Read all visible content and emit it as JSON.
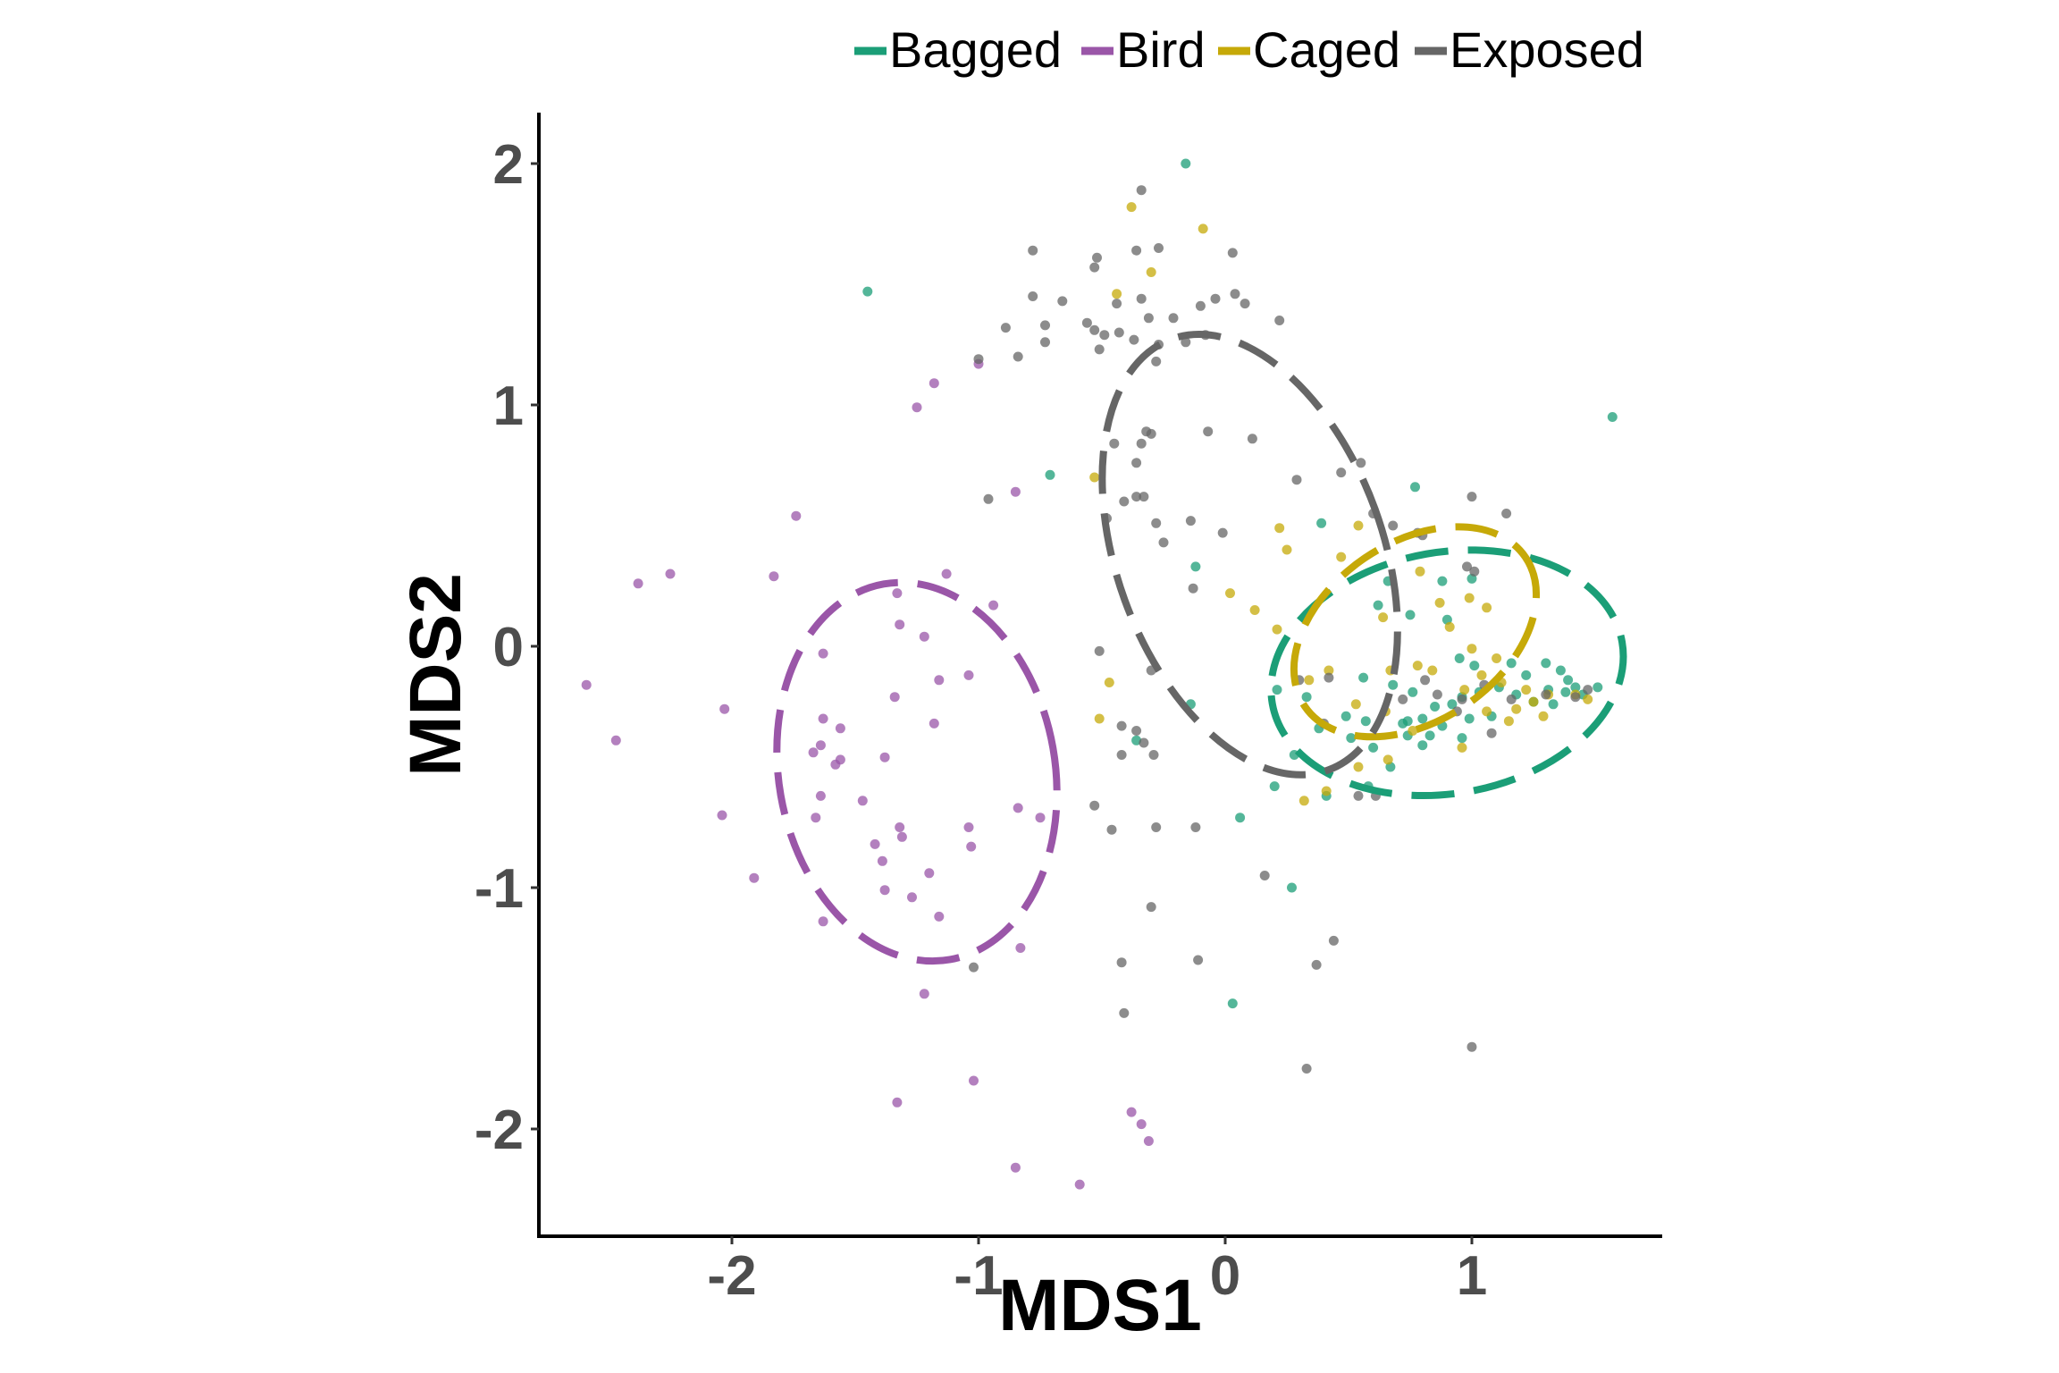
{
  "chart_data": {
    "type": "scatter",
    "title": "",
    "xlabel": "MDS1",
    "ylabel": "MDS2",
    "xlim": [
      -2.8,
      1.75
    ],
    "ylim": [
      -2.42,
      2.2
    ],
    "xticks": [
      -2,
      -1,
      0,
      1
    ],
    "yticks": [
      -2,
      -1,
      0,
      1,
      2
    ],
    "xtick_labels": [
      "-2",
      "-1",
      "0",
      "1"
    ],
    "ytick_labels": [
      "-2",
      "-1",
      "0",
      "1",
      "2"
    ],
    "grid": false,
    "legend_position": "top-right",
    "ellipse_style": "dashed",
    "series": [
      {
        "name": "Bagged",
        "color": "#1b9e77",
        "ellipse": {
          "cx": 0.9,
          "cy": -0.11,
          "rx": 0.72,
          "ry": 0.5,
          "angle": -10
        },
        "points": [
          [
            -1.45,
            1.47
          ],
          [
            -0.16,
            2.0
          ],
          [
            1.57,
            0.95
          ],
          [
            -0.71,
            0.71
          ],
          [
            0.77,
            0.66
          ],
          [
            0.39,
            0.51
          ],
          [
            -0.12,
            0.33
          ],
          [
            0.88,
            0.27
          ],
          [
            0.66,
            0.27
          ],
          [
            1.0,
            0.28
          ],
          [
            0.62,
            0.17
          ],
          [
            0.75,
            0.13
          ],
          [
            0.9,
            0.11
          ],
          [
            1.3,
            -0.07
          ],
          [
            1.36,
            -0.1
          ],
          [
            1.39,
            -0.14
          ],
          [
            1.51,
            -0.17
          ],
          [
            1.31,
            -0.18
          ],
          [
            1.38,
            -0.19
          ],
          [
            1.42,
            -0.17
          ],
          [
            1.18,
            -0.2
          ],
          [
            1.11,
            -0.17
          ],
          [
            1.03,
            -0.19
          ],
          [
            0.96,
            -0.21
          ],
          [
            0.92,
            -0.24
          ],
          [
            0.85,
            -0.25
          ],
          [
            0.8,
            -0.3
          ],
          [
            0.74,
            -0.31
          ],
          [
            1.08,
            -0.29
          ],
          [
            0.99,
            -0.3
          ],
          [
            0.88,
            -0.33
          ],
          [
            0.74,
            -0.37
          ],
          [
            0.8,
            -0.41
          ],
          [
            0.57,
            -0.31
          ],
          [
            0.49,
            -0.29
          ],
          [
            0.38,
            -0.34
          ],
          [
            0.33,
            -0.21
          ],
          [
            0.51,
            -0.38
          ],
          [
            0.6,
            -0.42
          ],
          [
            0.67,
            -0.5
          ],
          [
            0.58,
            -0.58
          ],
          [
            0.41,
            -0.62
          ],
          [
            0.2,
            -0.58
          ],
          [
            0.28,
            -0.45
          ],
          [
            -0.36,
            -0.39
          ],
          [
            -0.14,
            -0.24
          ],
          [
            0.06,
            -0.71
          ],
          [
            0.27,
            -1.0
          ],
          [
            0.03,
            -1.48
          ],
          [
            0.21,
            -0.18
          ],
          [
            1.16,
            -0.07
          ],
          [
            1.22,
            -0.12
          ],
          [
            1.45,
            -0.2
          ],
          [
            1.01,
            -0.08
          ],
          [
            0.96,
            -0.38
          ],
          [
            0.76,
            -0.19
          ],
          [
            1.25,
            -0.23
          ],
          [
            1.33,
            -0.24
          ],
          [
            0.72,
            -0.32
          ],
          [
            0.83,
            -0.37
          ],
          [
            0.68,
            -0.16
          ],
          [
            0.56,
            -0.13
          ],
          [
            0.95,
            -0.05
          ]
        ]
      },
      {
        "name": "Bird",
        "color": "#9a56a8",
        "ellipse": {
          "cx": -1.25,
          "cy": -0.52,
          "rx": 0.56,
          "ry": 0.79,
          "angle": -10
        },
        "points": [
          [
            -1.18,
            1.09
          ],
          [
            -1.25,
            0.99
          ],
          [
            -1.0,
            1.17
          ],
          [
            -0.85,
            0.64
          ],
          [
            -1.74,
            0.54
          ],
          [
            -1.33,
            0.22
          ],
          [
            -1.13,
            0.3
          ],
          [
            -1.83,
            0.29
          ],
          [
            -2.25,
            0.3
          ],
          [
            -2.38,
            0.26
          ],
          [
            -1.32,
            0.09
          ],
          [
            -1.22,
            0.04
          ],
          [
            -0.94,
            0.17
          ],
          [
            -1.63,
            -0.03
          ],
          [
            -1.16,
            -0.14
          ],
          [
            -1.34,
            -0.21
          ],
          [
            -2.59,
            -0.16
          ],
          [
            -2.47,
            -0.39
          ],
          [
            -2.03,
            -0.26
          ],
          [
            -1.63,
            -0.3
          ],
          [
            -1.56,
            -0.34
          ],
          [
            -1.67,
            -0.44
          ],
          [
            -1.64,
            -0.41
          ],
          [
            -1.56,
            -0.47
          ],
          [
            -1.58,
            -0.49
          ],
          [
            -1.38,
            -0.46
          ],
          [
            -1.18,
            -0.32
          ],
          [
            -1.64,
            -0.62
          ],
          [
            -1.47,
            -0.64
          ],
          [
            -1.66,
            -0.71
          ],
          [
            -2.04,
            -0.7
          ],
          [
            -0.84,
            -0.67
          ],
          [
            -0.75,
            -0.71
          ],
          [
            -1.32,
            -0.75
          ],
          [
            -1.31,
            -0.79
          ],
          [
            -1.42,
            -0.82
          ],
          [
            -1.04,
            -0.75
          ],
          [
            -1.03,
            -0.83
          ],
          [
            -1.39,
            -0.89
          ],
          [
            -1.2,
            -0.94
          ],
          [
            -1.38,
            -1.01
          ],
          [
            -1.27,
            -1.04
          ],
          [
            -1.91,
            -0.96
          ],
          [
            -1.63,
            -1.14
          ],
          [
            -1.16,
            -1.12
          ],
          [
            -0.83,
            -1.25
          ],
          [
            -1.22,
            -1.44
          ],
          [
            -1.02,
            -1.8
          ],
          [
            -1.33,
            -1.89
          ],
          [
            -0.38,
            -1.93
          ],
          [
            -0.34,
            -1.98
          ],
          [
            -0.31,
            -2.05
          ],
          [
            -0.85,
            -2.16
          ],
          [
            -0.59,
            -2.23
          ],
          [
            -1.04,
            -0.12
          ]
        ]
      },
      {
        "name": "Caged",
        "color": "#c6a908",
        "ellipse": {
          "cx": 0.77,
          "cy": 0.06,
          "rx": 0.54,
          "ry": 0.37,
          "angle": -34
        },
        "points": [
          [
            -0.38,
            1.82
          ],
          [
            -0.3,
            1.55
          ],
          [
            -0.44,
            1.46
          ],
          [
            -0.09,
            1.73
          ],
          [
            -0.53,
            0.7
          ],
          [
            0.22,
            0.49
          ],
          [
            0.25,
            0.4
          ],
          [
            0.47,
            0.37
          ],
          [
            0.79,
            0.31
          ],
          [
            0.99,
            0.2
          ],
          [
            1.06,
            0.16
          ],
          [
            0.02,
            0.22
          ],
          [
            0.21,
            0.07
          ],
          [
            0.64,
            0.12
          ],
          [
            0.91,
            0.08
          ],
          [
            1.0,
            -0.01
          ],
          [
            1.1,
            -0.05
          ],
          [
            1.04,
            -0.12
          ],
          [
            1.12,
            -0.15
          ],
          [
            1.22,
            -0.18
          ],
          [
            1.31,
            -0.2
          ],
          [
            1.42,
            -0.2
          ],
          [
            1.47,
            -0.22
          ],
          [
            0.97,
            -0.18
          ],
          [
            0.84,
            -0.1
          ],
          [
            0.67,
            -0.1
          ],
          [
            0.42,
            -0.1
          ],
          [
            0.34,
            -0.14
          ],
          [
            0.65,
            -0.27
          ],
          [
            0.76,
            -0.35
          ],
          [
            0.96,
            -0.42
          ],
          [
            1.06,
            -0.27
          ],
          [
            1.18,
            -0.26
          ],
          [
            1.29,
            -0.29
          ],
          [
            0.53,
            -0.24
          ],
          [
            0.54,
            -0.5
          ],
          [
            0.66,
            -0.47
          ],
          [
            0.41,
            -0.6
          ],
          [
            0.32,
            -0.64
          ],
          [
            -0.47,
            -0.15
          ],
          [
            -0.51,
            -0.3
          ],
          [
            0.12,
            0.15
          ],
          [
            0.54,
            0.5
          ],
          [
            0.87,
            0.18
          ],
          [
            1.25,
            -0.23
          ],
          [
            0.78,
            -0.08
          ],
          [
            1.15,
            -0.31
          ]
        ]
      },
      {
        "name": "Exposed",
        "color": "#666666",
        "ellipse": {
          "cx": 0.1,
          "cy": 0.38,
          "rx": 0.54,
          "ry": 0.95,
          "angle": -20
        },
        "points": [
          [
            -0.34,
            1.89
          ],
          [
            -0.36,
            1.64
          ],
          [
            -0.27,
            1.65
          ],
          [
            -0.52,
            1.61
          ],
          [
            -0.53,
            1.57
          ],
          [
            -0.44,
            1.42
          ],
          [
            -0.34,
            1.44
          ],
          [
            -0.21,
            1.36
          ],
          [
            -0.1,
            1.41
          ],
          [
            -0.04,
            1.44
          ],
          [
            0.04,
            1.46
          ],
          [
            0.03,
            1.63
          ],
          [
            0.08,
            1.42
          ],
          [
            0.22,
            1.35
          ],
          [
            -0.78,
            1.64
          ],
          [
            -0.78,
            1.45
          ],
          [
            -0.66,
            1.43
          ],
          [
            -0.89,
            1.32
          ],
          [
            -0.84,
            1.2
          ],
          [
            -0.73,
            1.26
          ],
          [
            -0.56,
            1.34
          ],
          [
            -0.53,
            1.31
          ],
          [
            -0.49,
            1.29
          ],
          [
            -0.37,
            1.27
          ],
          [
            -0.27,
            1.25
          ],
          [
            -0.28,
            1.18
          ],
          [
            -1.0,
            1.19
          ],
          [
            -0.73,
            1.33
          ],
          [
            -0.51,
            1.23
          ],
          [
            -0.43,
            1.3
          ],
          [
            -0.31,
            1.36
          ],
          [
            -0.16,
            1.26
          ],
          [
            -0.08,
            1.29
          ],
          [
            -0.34,
            0.84
          ],
          [
            -0.32,
            0.89
          ],
          [
            -0.3,
            0.88
          ],
          [
            -0.45,
            0.84
          ],
          [
            -0.36,
            0.76
          ],
          [
            0.11,
            0.86
          ],
          [
            -0.07,
            0.89
          ],
          [
            -0.36,
            0.62
          ],
          [
            -0.33,
            0.62
          ],
          [
            -0.41,
            0.6
          ],
          [
            -0.48,
            0.53
          ],
          [
            -0.28,
            0.51
          ],
          [
            -0.14,
            0.52
          ],
          [
            -0.01,
            0.47
          ],
          [
            -0.25,
            0.43
          ],
          [
            0.29,
            0.69
          ],
          [
            0.47,
            0.72
          ],
          [
            0.55,
            0.76
          ],
          [
            0.6,
            0.55
          ],
          [
            0.68,
            0.5
          ],
          [
            0.8,
            0.46
          ],
          [
            0.78,
            0.47
          ],
          [
            0.98,
            0.33
          ],
          [
            1.01,
            0.31
          ],
          [
            1.14,
            0.55
          ],
          [
            1.0,
            0.62
          ],
          [
            -0.96,
            0.61
          ],
          [
            -0.13,
            0.24
          ],
          [
            -0.51,
            -0.02
          ],
          [
            -0.3,
            -0.1
          ],
          [
            -0.42,
            -0.33
          ],
          [
            -0.36,
            -0.35
          ],
          [
            -0.42,
            -0.45
          ],
          [
            -0.33,
            -0.4
          ],
          [
            -0.29,
            -0.45
          ],
          [
            -0.53,
            -0.66
          ],
          [
            -0.46,
            -0.76
          ],
          [
            -0.28,
            -0.75
          ],
          [
            -0.12,
            -0.75
          ],
          [
            0.16,
            -0.95
          ],
          [
            -0.3,
            -1.08
          ],
          [
            -0.11,
            -1.3
          ],
          [
            -0.42,
            -1.31
          ],
          [
            -1.02,
            -1.33
          ],
          [
            -0.41,
            -1.52
          ],
          [
            0.33,
            -1.75
          ],
          [
            0.37,
            -1.32
          ],
          [
            0.44,
            -1.22
          ],
          [
            1.0,
            -1.66
          ],
          [
            0.42,
            -0.13
          ],
          [
            0.72,
            -0.22
          ],
          [
            0.81,
            -0.14
          ],
          [
            0.86,
            -0.2
          ],
          [
            0.96,
            -0.22
          ],
          [
            1.05,
            -0.16
          ],
          [
            1.16,
            -0.22
          ],
          [
            1.3,
            -0.2
          ],
          [
            1.42,
            -0.21
          ],
          [
            1.47,
            -0.18
          ],
          [
            1.08,
            -0.36
          ],
          [
            0.94,
            -0.27
          ],
          [
            0.54,
            -0.62
          ],
          [
            0.61,
            -0.62
          ],
          [
            0.4,
            -0.32
          ],
          [
            0.3,
            -0.14
          ]
        ]
      }
    ]
  }
}
